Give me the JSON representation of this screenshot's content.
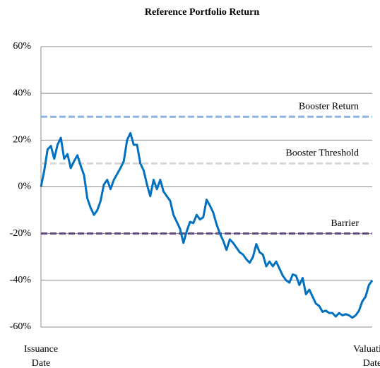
{
  "chart_data": {
    "type": "line",
    "title": "Reference Portfolio Return",
    "categories": [
      "Issuance Date",
      null,
      null,
      null,
      null,
      null,
      null,
      null,
      null,
      null,
      null,
      null,
      null,
      null,
      null,
      null,
      null,
      null,
      null,
      null,
      null,
      null,
      null,
      null,
      null,
      null,
      null,
      null,
      null,
      null,
      null,
      null,
      null,
      null,
      null,
      null,
      null,
      null,
      null,
      null,
      null,
      null,
      null,
      null,
      null,
      null,
      null,
      null,
      null,
      null,
      null,
      null,
      null,
      null,
      null,
      null,
      null,
      null,
      null,
      null,
      null,
      null,
      null,
      null,
      null,
      null,
      null,
      null,
      null,
      null,
      null,
      null,
      null,
      null,
      null,
      null,
      null,
      null,
      null,
      null,
      null,
      null,
      null,
      null,
      null,
      null,
      null,
      null,
      null,
      null,
      null,
      null,
      null,
      null,
      null,
      null,
      null,
      null,
      null,
      null,
      "Valuation Date"
    ],
    "series": [
      {
        "name": "Reference Portfolio Return",
        "color": "#0070c0",
        "values": [
          0,
          7,
          16,
          17.5,
          12,
          18,
          21,
          12,
          14,
          8,
          11,
          13.5,
          9,
          5,
          -5,
          -9,
          -12,
          -10,
          -6,
          1,
          3,
          -1,
          3,
          5.5,
          8,
          11,
          20,
          23,
          18,
          18,
          10,
          7,
          1,
          -4,
          3,
          -1,
          3,
          -2,
          -4,
          -6,
          -12,
          -15,
          -18,
          -24,
          -19,
          -15,
          -15.5,
          -12,
          -14,
          -13,
          -5.5,
          -8,
          -11,
          -16,
          -20,
          -23,
          -27,
          -22.5,
          -24,
          -26,
          -28,
          -29,
          -31,
          -32.5,
          -30,
          -24.5,
          -28,
          -29,
          -34,
          -32,
          -34,
          -32,
          -35,
          -38,
          -40,
          -41,
          -37.5,
          -38,
          -42,
          -39,
          -46,
          -44,
          -47,
          -50,
          -51,
          -53.5,
          -53,
          -54,
          -54,
          -55.5,
          -54,
          -55,
          -54.5,
          -55,
          -56,
          -55,
          -53,
          -49,
          -47,
          -42,
          -40
        ]
      }
    ],
    "reference_lines": [
      {
        "label": "Booster Return",
        "value": 30,
        "color": "#8db3e2"
      },
      {
        "label": "Booster Threshold",
        "value": 10,
        "color": "#d9d9d9"
      },
      {
        "label": "Barrier",
        "value": -20,
        "color": "#604a7b"
      }
    ],
    "ylim": [
      -60,
      60
    ],
    "yticks": [
      {
        "value": -60,
        "label": "-60%"
      },
      {
        "value": -40,
        "label": "-40%"
      },
      {
        "value": -20,
        "label": "-20%"
      },
      {
        "value": 0,
        "label": "0%"
      },
      {
        "value": 20,
        "label": "20%"
      },
      {
        "value": 40,
        "label": "40%"
      },
      {
        "value": 60,
        "label": "60%"
      }
    ],
    "grid": true
  }
}
